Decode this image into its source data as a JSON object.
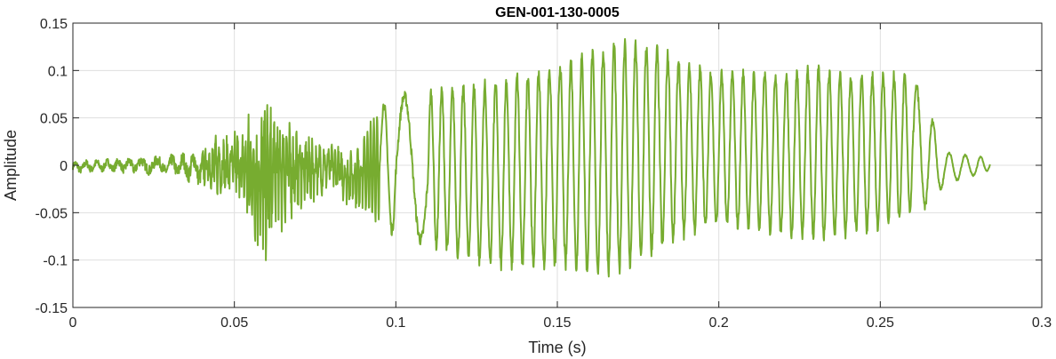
{
  "chart_data": {
    "type": "line",
    "title": "GEN-001-130-0005",
    "xlabel": "Time (s)",
    "ylabel": "Amplitude",
    "xlim": [
      0,
      0.3
    ],
    "ylim": [
      -0.15,
      0.15
    ],
    "xticks": [
      0,
      0.05,
      0.1,
      0.15,
      0.2,
      0.25,
      0.3
    ],
    "xtick_labels": [
      "0",
      "0.05",
      "0.1",
      "0.15",
      "0.2",
      "0.25",
      "0.3"
    ],
    "yticks": [
      -0.15,
      -0.1,
      -0.05,
      0,
      0.05,
      0.1,
      0.15
    ],
    "ytick_labels": [
      "-0.15",
      "-0.1",
      "-0.05",
      "0",
      "0.05",
      "0.1",
      "0.15"
    ],
    "grid": true,
    "line_color": "#77AC30",
    "signal_duration_s": 0.284,
    "series": [
      {
        "description": "waveform envelope (approximate peak amplitude over time)",
        "t": [
          0,
          0.01,
          0.02,
          0.03,
          0.04,
          0.045,
          0.05,
          0.055,
          0.06,
          0.065,
          0.07,
          0.075,
          0.08,
          0.085,
          0.09,
          0.095,
          0.1,
          0.11,
          0.12,
          0.13,
          0.14,
          0.15,
          0.16,
          0.17,
          0.18,
          0.19,
          0.2,
          0.21,
          0.22,
          0.23,
          0.24,
          0.25,
          0.26,
          0.265,
          0.27,
          0.275,
          0.28,
          0.284
        ],
        "upper": [
          0.004,
          0.006,
          0.008,
          0.01,
          0.015,
          0.03,
          0.03,
          0.055,
          0.058,
          0.055,
          0.03,
          0.028,
          0.02,
          0.015,
          0.03,
          0.065,
          0.075,
          0.08,
          0.085,
          0.09,
          0.1,
          0.11,
          0.12,
          0.135,
          0.128,
          0.11,
          0.1,
          0.1,
          0.1,
          0.105,
          0.1,
          0.1,
          0.095,
          0.06,
          0.015,
          0.012,
          0.01,
          0.008
        ],
        "lower": [
          -0.008,
          -0.006,
          -0.008,
          -0.01,
          -0.02,
          -0.03,
          -0.03,
          -0.07,
          -0.09,
          -0.06,
          -0.04,
          -0.035,
          -0.02,
          -0.04,
          -0.045,
          -0.065,
          -0.075,
          -0.085,
          -0.1,
          -0.11,
          -0.11,
          -0.11,
          -0.115,
          -0.115,
          -0.095,
          -0.075,
          -0.065,
          -0.07,
          -0.075,
          -0.08,
          -0.075,
          -0.07,
          -0.05,
          -0.045,
          -0.02,
          -0.015,
          -0.01,
          -0.005
        ],
        "cycles_per_segment": [
          3,
          3,
          2,
          3,
          5,
          4,
          6,
          6,
          5,
          5,
          5,
          4,
          5,
          5,
          5,
          1,
          1,
          3,
          3,
          3,
          3,
          3,
          3,
          3,
          3,
          3,
          3,
          3,
          3,
          3,
          3,
          3,
          1,
          1,
          1,
          1,
          1
        ]
      }
    ]
  }
}
